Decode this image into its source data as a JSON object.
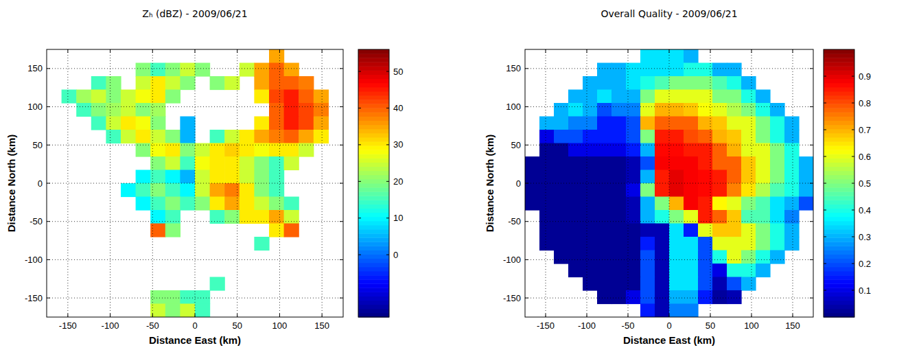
{
  "chart_data": [
    {
      "type": "heatmap",
      "title": "Zₕ (dBZ) - 2009/06/21",
      "x_label": "Distance East (km)",
      "y_label": "Distance North (km)",
      "xlim": [
        -175,
        175
      ],
      "ylim": [
        -175,
        175
      ],
      "xticks": [
        -150,
        -100,
        -50,
        0,
        50,
        100,
        150
      ],
      "yticks": [
        -150,
        -100,
        -50,
        0,
        50,
        100,
        150
      ],
      "grid": true,
      "x": [
        -166.25,
        -148.75,
        -131.25,
        -113.75,
        -96.25,
        -78.75,
        -61.25,
        -43.75,
        -26.25,
        -8.75,
        8.75,
        26.25,
        43.75,
        61.25,
        78.75,
        96.25,
        113.75,
        131.25,
        148.75,
        166.25
      ],
      "y": [
        166.25,
        148.75,
        131.25,
        113.75,
        96.25,
        78.75,
        61.25,
        43.75,
        26.25,
        8.75,
        -8.75,
        -26.25,
        -43.75,
        -61.25,
        -78.75,
        -96.25,
        -113.75,
        -131.25,
        -148.75,
        -166.25
      ],
      "values": [
        [
          null,
          null,
          null,
          null,
          null,
          null,
          null,
          null,
          null,
          null,
          null,
          null,
          null,
          null,
          null,
          35,
          null,
          null,
          null,
          null
        ],
        [
          null,
          null,
          null,
          null,
          null,
          null,
          20,
          15,
          20,
          25,
          20,
          null,
          null,
          25,
          35,
          40,
          35,
          null,
          null,
          null
        ],
        [
          null,
          null,
          null,
          15,
          20,
          null,
          25,
          30,
          25,
          20,
          null,
          20,
          25,
          null,
          35,
          40,
          40,
          38,
          null,
          null
        ],
        [
          null,
          15,
          22,
          25,
          20,
          25,
          28,
          30,
          20,
          null,
          null,
          null,
          null,
          null,
          30,
          42,
          45,
          40,
          35,
          null
        ],
        [
          null,
          null,
          15,
          20,
          22,
          25,
          20,
          22,
          null,
          null,
          null,
          null,
          null,
          null,
          null,
          40,
          45,
          42,
          38,
          null
        ],
        [
          null,
          null,
          null,
          15,
          25,
          30,
          28,
          20,
          null,
          5,
          null,
          null,
          null,
          null,
          30,
          40,
          45,
          42,
          35,
          null
        ],
        [
          null,
          null,
          null,
          null,
          15,
          25,
          30,
          25,
          20,
          5,
          null,
          15,
          25,
          30,
          35,
          38,
          40,
          35,
          30,
          null
        ],
        [
          null,
          null,
          null,
          null,
          null,
          null,
          20,
          28,
          30,
          20,
          25,
          30,
          32,
          30,
          28,
          30,
          30,
          25,
          null,
          null
        ],
        [
          null,
          null,
          null,
          null,
          null,
          null,
          null,
          20,
          25,
          15,
          28,
          30,
          30,
          25,
          20,
          15,
          25,
          null,
          null,
          null
        ],
        [
          null,
          null,
          null,
          null,
          null,
          null,
          10,
          15,
          10,
          5,
          25,
          30,
          30,
          25,
          20,
          15,
          null,
          null,
          null,
          null
        ],
        [
          null,
          null,
          null,
          null,
          null,
          10,
          15,
          20,
          15,
          10,
          25,
          35,
          38,
          30,
          20,
          15,
          null,
          null,
          null,
          null
        ],
        [
          null,
          null,
          null,
          null,
          null,
          null,
          10,
          15,
          20,
          15,
          20,
          30,
          35,
          30,
          25,
          20,
          15,
          null,
          null,
          null
        ],
        [
          null,
          null,
          null,
          null,
          null,
          null,
          null,
          10,
          15,
          null,
          null,
          15,
          20,
          30,
          30,
          35,
          25,
          null,
          null,
          null
        ],
        [
          null,
          null,
          null,
          null,
          null,
          null,
          null,
          40,
          20,
          null,
          null,
          null,
          null,
          null,
          null,
          30,
          40,
          null,
          null,
          null
        ],
        [
          null,
          null,
          null,
          null,
          null,
          null,
          null,
          null,
          null,
          null,
          null,
          null,
          null,
          null,
          15,
          null,
          null,
          null,
          null,
          null
        ],
        [
          null,
          null,
          null,
          null,
          null,
          null,
          null,
          null,
          null,
          null,
          null,
          null,
          null,
          null,
          null,
          null,
          null,
          null,
          null,
          null
        ],
        [
          null,
          null,
          null,
          null,
          null,
          null,
          null,
          null,
          null,
          null,
          null,
          null,
          null,
          null,
          null,
          null,
          null,
          null,
          null,
          null
        ],
        [
          null,
          null,
          null,
          null,
          null,
          null,
          null,
          null,
          null,
          null,
          null,
          15,
          null,
          null,
          null,
          null,
          null,
          null,
          null,
          null
        ],
        [
          null,
          null,
          null,
          null,
          null,
          null,
          null,
          20,
          20,
          15,
          15,
          null,
          null,
          null,
          null,
          null,
          null,
          null,
          null,
          null
        ],
        [
          null,
          null,
          null,
          null,
          null,
          null,
          null,
          25,
          20,
          25,
          15,
          null,
          null,
          null,
          null,
          null,
          null,
          null,
          null,
          null
        ]
      ],
      "colorbar": {
        "range": [
          -17,
          56
        ],
        "ticks": [
          0,
          10,
          20,
          30,
          40,
          50
        ]
      }
    },
    {
      "type": "heatmap",
      "title": "Overall Quality - 2009/06/21",
      "x_label": "Distance East (km)",
      "y_label": "Distance North (km)",
      "xlim": [
        -175,
        175
      ],
      "ylim": [
        -175,
        175
      ],
      "xticks": [
        -150,
        -100,
        -50,
        0,
        50,
        100,
        150
      ],
      "yticks": [
        -150,
        -100,
        -50,
        0,
        50,
        100,
        150
      ],
      "grid": true,
      "x": [
        -166.25,
        -148.75,
        -131.25,
        -113.75,
        -96.25,
        -78.75,
        -61.25,
        -43.75,
        -26.25,
        -8.75,
        8.75,
        26.25,
        43.75,
        61.25,
        78.75,
        96.25,
        113.75,
        131.25,
        148.75,
        166.25
      ],
      "y": [
        166.25,
        148.75,
        131.25,
        113.75,
        96.25,
        78.75,
        61.25,
        43.75,
        26.25,
        8.75,
        -8.75,
        -26.25,
        -43.75,
        -61.25,
        -78.75,
        -96.25,
        -113.75,
        -131.25,
        -148.75,
        -166.25
      ],
      "values": [
        [
          null,
          null,
          null,
          null,
          null,
          null,
          null,
          null,
          0.35,
          0.35,
          0.35,
          0.3,
          null,
          null,
          null,
          null,
          null,
          null,
          null,
          null
        ],
        [
          null,
          null,
          null,
          null,
          null,
          0.3,
          0.3,
          0.35,
          0.35,
          0.35,
          0.35,
          0.4,
          0.4,
          0.3,
          0.3,
          null,
          null,
          null,
          null,
          null
        ],
        [
          null,
          null,
          null,
          null,
          0.3,
          0.3,
          0.3,
          0.35,
          0.4,
          0.45,
          0.5,
          0.5,
          0.5,
          0.45,
          0.4,
          0.3,
          null,
          null,
          null,
          null
        ],
        [
          null,
          null,
          null,
          0.3,
          0.3,
          0.35,
          0.3,
          0.3,
          0.5,
          0.6,
          0.6,
          0.6,
          0.6,
          0.5,
          0.5,
          0.4,
          0.3,
          null,
          null,
          null
        ],
        [
          null,
          null,
          0.3,
          0.35,
          0.3,
          0.2,
          0.25,
          0.25,
          0.6,
          0.7,
          0.7,
          0.68,
          0.62,
          0.6,
          0.55,
          0.5,
          0.4,
          0.3,
          null,
          null
        ],
        [
          null,
          0.3,
          0.3,
          0.25,
          0.25,
          0.15,
          0.15,
          0.2,
          0.7,
          0.78,
          0.78,
          0.78,
          0.7,
          0.68,
          0.6,
          0.6,
          0.5,
          0.4,
          0.3,
          null
        ],
        [
          null,
          0.1,
          0.2,
          0.2,
          0.15,
          0.15,
          0.15,
          0.2,
          0.5,
          0.85,
          0.85,
          0.8,
          0.78,
          0.7,
          0.68,
          0.6,
          0.5,
          0.4,
          0.3,
          null
        ],
        [
          null,
          0.02,
          0.02,
          0.1,
          0.1,
          0.1,
          0.1,
          0.15,
          0.3,
          0.87,
          0.87,
          0.85,
          0.85,
          0.78,
          0.7,
          0.6,
          0.6,
          0.5,
          0.4,
          null
        ],
        [
          0.02,
          0.02,
          0.02,
          0.02,
          0.02,
          0.02,
          0.02,
          0.05,
          0.2,
          0.88,
          0.88,
          0.88,
          0.85,
          0.78,
          0.78,
          0.68,
          0.6,
          0.5,
          0.4,
          0.3
        ],
        [
          0.02,
          0.02,
          0.02,
          0.02,
          0.02,
          0.02,
          0.02,
          0.05,
          0.3,
          0.85,
          0.9,
          0.88,
          0.87,
          0.85,
          0.78,
          0.68,
          0.6,
          0.5,
          0.4,
          0.3
        ],
        [
          0.02,
          0.02,
          0.02,
          0.02,
          0.02,
          0.02,
          0.02,
          0.1,
          0.5,
          0.85,
          0.9,
          0.88,
          0.87,
          0.85,
          0.75,
          0.65,
          0.55,
          0.45,
          0.4,
          0.3
        ],
        [
          0.02,
          0.02,
          0.02,
          0.02,
          0.02,
          0.02,
          0.02,
          0.05,
          0.3,
          0.5,
          0.7,
          0.88,
          0.85,
          0.63,
          0.6,
          0.5,
          0.45,
          0.35,
          0.3,
          0.2
        ],
        [
          null,
          0.02,
          0.02,
          0.02,
          0.02,
          0.02,
          0.02,
          0.05,
          0.3,
          0.4,
          0.5,
          0.6,
          0.85,
          0.78,
          0.68,
          0.45,
          0.45,
          0.35,
          0.25,
          null
        ],
        [
          null,
          0.02,
          0.02,
          0.02,
          0.02,
          0.02,
          0.02,
          0.02,
          0.05,
          0.05,
          0.35,
          0.15,
          0.6,
          0.68,
          0.68,
          0.6,
          0.5,
          0.4,
          0.3,
          null
        ],
        [
          null,
          0.02,
          0.02,
          0.02,
          0.02,
          0.02,
          0.02,
          0.02,
          0.15,
          0.05,
          0.35,
          0.35,
          0.2,
          0.6,
          0.6,
          0.6,
          0.5,
          0.4,
          0.3,
          null
        ],
        [
          null,
          null,
          0.02,
          0.02,
          0.02,
          0.02,
          0.02,
          0.02,
          0.2,
          0.05,
          0.35,
          0.35,
          0.2,
          0.4,
          0.6,
          0.5,
          0.4,
          0.3,
          null,
          null
        ],
        [
          null,
          null,
          null,
          0.02,
          0.02,
          0.02,
          0.02,
          0.02,
          0.2,
          0.05,
          0.35,
          0.35,
          0.2,
          0.1,
          0.4,
          0.4,
          0.3,
          null,
          null,
          null
        ],
        [
          null,
          null,
          null,
          null,
          0.02,
          0.02,
          0.02,
          0.02,
          0.2,
          0.05,
          0.35,
          0.35,
          0.2,
          0.05,
          0.2,
          0.3,
          null,
          null,
          null,
          null
        ],
        [
          null,
          null,
          null,
          null,
          null,
          0.02,
          0.02,
          0.1,
          0.2,
          0.05,
          0.3,
          0.3,
          0.15,
          0.03,
          0.05,
          null,
          null,
          null,
          null,
          null
        ],
        [
          null,
          null,
          null,
          null,
          null,
          null,
          null,
          null,
          0.15,
          0.05,
          0.25,
          0.25,
          null,
          null,
          null,
          null,
          null,
          null,
          null,
          null
        ]
      ],
      "colorbar": {
        "range": [
          0,
          1
        ],
        "ticks": [
          0.1,
          0.2,
          0.3,
          0.4,
          0.5,
          0.6,
          0.7,
          0.8,
          0.9
        ]
      }
    }
  ]
}
